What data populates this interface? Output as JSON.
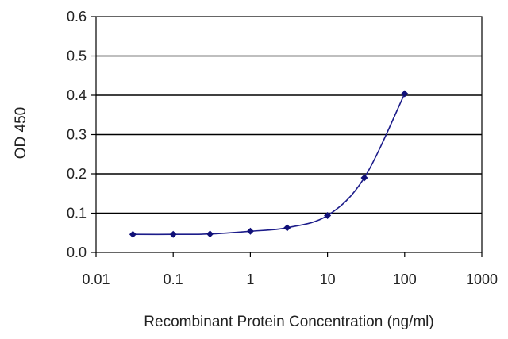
{
  "chart_data": {
    "type": "scatter",
    "xlabel": "Recombinant Protein Concentration (ng/ml)",
    "ylabel": "OD 450",
    "x_scale": "log",
    "xlim": [
      0.01,
      1000
    ],
    "ylim": [
      0.0,
      0.6
    ],
    "x_ticks": [
      "0.01",
      "0.1",
      "1",
      "10",
      "100",
      "1000"
    ],
    "y_ticks": [
      "0.0",
      "0.1",
      "0.2",
      "0.3",
      "0.4",
      "0.5",
      "0.6"
    ],
    "grid": "horizontal",
    "series": [
      {
        "x": [
          0.03,
          0.1,
          0.3,
          1,
          3,
          10,
          30,
          100
        ],
        "y": [
          0.046,
          0.046,
          0.047,
          0.054,
          0.063,
          0.094,
          0.19,
          0.404
        ],
        "color": "#101078"
      }
    ]
  }
}
